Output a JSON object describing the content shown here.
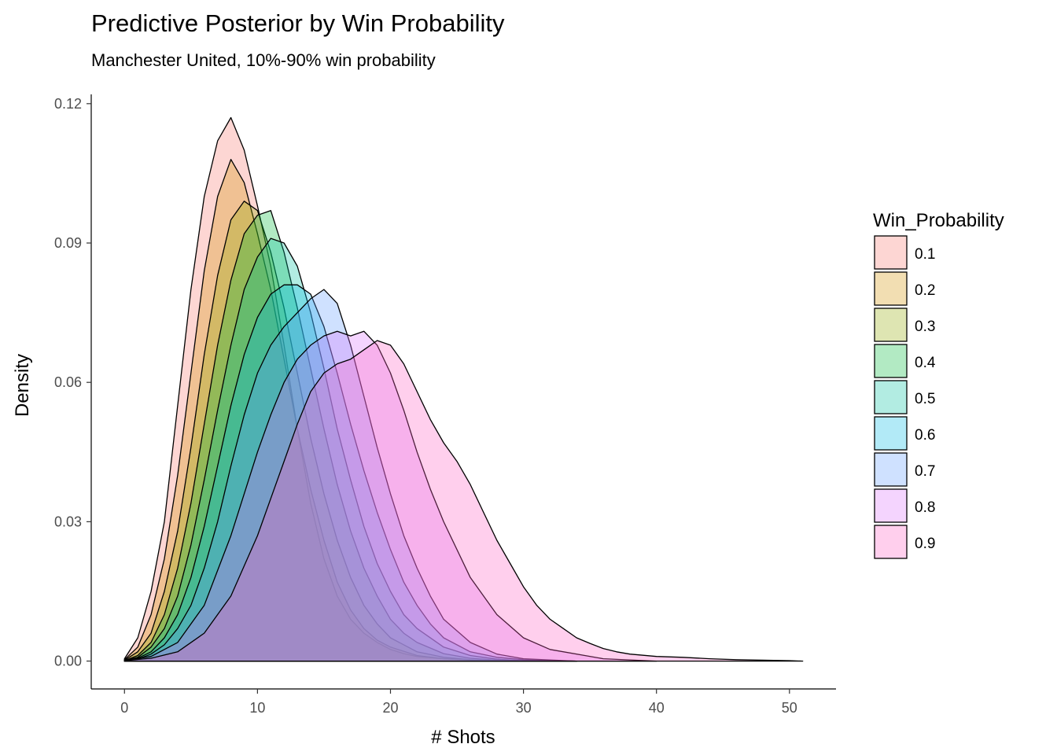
{
  "chart_data": {
    "type": "area",
    "title": "Predictive Posterior by Win Probability",
    "subtitle": "Manchester United, 10%-90% win probability",
    "xlabel": "# Shots",
    "ylabel": "Density",
    "xlim": [
      -2.5,
      53.5
    ],
    "ylim": [
      -0.006,
      0.122
    ],
    "x_ticks": [
      0,
      10,
      20,
      30,
      40,
      50
    ],
    "x_tick_labels": [
      "0",
      "10",
      "20",
      "30",
      "40",
      "50"
    ],
    "y_ticks": [
      0.0,
      0.03,
      0.06,
      0.09,
      0.12
    ],
    "y_tick_labels": [
      "0.00",
      "0.03",
      "0.06",
      "0.09",
      "0.12"
    ],
    "grid": false,
    "legend": {
      "title": "Win_Probability",
      "position": "right"
    },
    "series": [
      {
        "name": "0.1",
        "color": "#F8766D",
        "x": [
          0,
          1,
          2,
          3,
          4,
          5,
          6,
          7,
          8,
          9,
          10,
          11,
          12,
          13,
          14,
          15,
          16,
          17,
          18,
          19,
          20,
          21,
          22,
          24,
          26,
          28,
          30,
          34
        ],
        "y": [
          0.0005,
          0.005,
          0.015,
          0.03,
          0.055,
          0.08,
          0.1,
          0.112,
          0.117,
          0.11,
          0.098,
          0.085,
          0.068,
          0.05,
          0.034,
          0.022,
          0.014,
          0.009,
          0.006,
          0.004,
          0.0025,
          0.0016,
          0.001,
          0.0005,
          0.0002,
          0.0001,
          5e-05,
          0
        ]
      },
      {
        "name": "0.2",
        "color": "#D39200",
        "x": [
          0,
          1,
          2,
          3,
          4,
          5,
          6,
          7,
          8,
          9,
          10,
          11,
          12,
          13,
          14,
          15,
          16,
          17,
          18,
          19,
          20,
          22,
          24,
          26,
          28,
          30,
          34
        ],
        "y": [
          0.0003,
          0.003,
          0.01,
          0.022,
          0.04,
          0.062,
          0.084,
          0.1,
          0.108,
          0.103,
          0.092,
          0.08,
          0.065,
          0.05,
          0.037,
          0.026,
          0.017,
          0.011,
          0.007,
          0.0045,
          0.003,
          0.0012,
          0.0005,
          0.0002,
          0.0001,
          5e-05,
          0
        ]
      },
      {
        "name": "0.3",
        "color": "#93AA00",
        "x": [
          0,
          1,
          2,
          3,
          4,
          5,
          6,
          7,
          8,
          9,
          10,
          11,
          12,
          13,
          14,
          15,
          16,
          17,
          18,
          19,
          20,
          22,
          24,
          26,
          28,
          30,
          34
        ],
        "y": [
          0.0002,
          0.002,
          0.006,
          0.015,
          0.028,
          0.046,
          0.066,
          0.083,
          0.095,
          0.099,
          0.097,
          0.088,
          0.076,
          0.062,
          0.048,
          0.036,
          0.026,
          0.018,
          0.012,
          0.008,
          0.005,
          0.002,
          0.0008,
          0.0003,
          0.0001,
          5e-05,
          0
        ]
      },
      {
        "name": "0.4",
        "color": "#00BA38",
        "x": [
          0,
          1,
          2,
          3,
          4,
          5,
          6,
          7,
          8,
          9,
          10,
          11,
          12,
          13,
          14,
          15,
          16,
          17,
          18,
          19,
          20,
          21,
          22,
          24,
          26,
          28,
          30,
          34
        ],
        "y": [
          0.0001,
          0.0012,
          0.004,
          0.01,
          0.02,
          0.034,
          0.051,
          0.068,
          0.082,
          0.092,
          0.096,
          0.097,
          0.088,
          0.076,
          0.063,
          0.05,
          0.038,
          0.028,
          0.02,
          0.014,
          0.009,
          0.006,
          0.004,
          0.0016,
          0.0006,
          0.0002,
          0.0001,
          0
        ]
      },
      {
        "name": "0.5",
        "color": "#00C19F",
        "x": [
          0,
          1,
          2,
          3,
          4,
          5,
          6,
          7,
          8,
          9,
          10,
          11,
          12,
          13,
          14,
          15,
          16,
          17,
          18,
          19,
          20,
          21,
          22,
          24,
          26,
          28,
          30,
          34
        ],
        "y": [
          0.0001,
          0.0008,
          0.003,
          0.007,
          0.014,
          0.025,
          0.039,
          0.054,
          0.068,
          0.08,
          0.087,
          0.091,
          0.09,
          0.085,
          0.075,
          0.063,
          0.05,
          0.039,
          0.029,
          0.021,
          0.015,
          0.01,
          0.007,
          0.003,
          0.0012,
          0.0004,
          0.0001,
          0
        ]
      },
      {
        "name": "0.6",
        "color": "#00B9E3",
        "x": [
          0,
          1,
          2,
          3,
          4,
          5,
          6,
          7,
          8,
          9,
          10,
          11,
          12,
          13,
          14,
          15,
          16,
          17,
          18,
          19,
          20,
          21,
          22,
          23,
          24,
          26,
          28,
          30,
          34
        ],
        "y": [
          0.0001,
          0.0006,
          0.002,
          0.005,
          0.01,
          0.018,
          0.029,
          0.042,
          0.055,
          0.066,
          0.074,
          0.079,
          0.081,
          0.081,
          0.079,
          0.072,
          0.062,
          0.051,
          0.041,
          0.032,
          0.024,
          0.017,
          0.012,
          0.008,
          0.005,
          0.002,
          0.0008,
          0.0003,
          0
        ]
      },
      {
        "name": "0.7",
        "color": "#619CFF",
        "x": [
          0,
          1,
          2,
          3,
          4,
          5,
          6,
          7,
          8,
          9,
          10,
          11,
          12,
          13,
          14,
          15,
          16,
          17,
          18,
          19,
          20,
          21,
          22,
          23,
          24,
          26,
          28,
          30,
          34
        ],
        "y": [
          0.0001,
          0.0004,
          0.0015,
          0.0035,
          0.007,
          0.012,
          0.02,
          0.03,
          0.042,
          0.053,
          0.062,
          0.068,
          0.072,
          0.075,
          0.078,
          0.08,
          0.077,
          0.068,
          0.057,
          0.046,
          0.036,
          0.027,
          0.02,
          0.014,
          0.009,
          0.004,
          0.0015,
          0.0005,
          0
        ]
      },
      {
        "name": "0.8",
        "color": "#DB72FB",
        "x": [
          0,
          2,
          4,
          6,
          8,
          9,
          10,
          11,
          12,
          13,
          14,
          15,
          16,
          17,
          18,
          19,
          20,
          21,
          22,
          23,
          24,
          26,
          28,
          30,
          32,
          36,
          40
        ],
        "y": [
          0.0001,
          0.001,
          0.004,
          0.012,
          0.027,
          0.036,
          0.045,
          0.053,
          0.06,
          0.065,
          0.068,
          0.07,
          0.071,
          0.07,
          0.071,
          0.068,
          0.062,
          0.054,
          0.045,
          0.037,
          0.03,
          0.018,
          0.01,
          0.005,
          0.0025,
          0.0005,
          0
        ]
      },
      {
        "name": "0.9",
        "color": "#FF61C3",
        "x": [
          0,
          2,
          4,
          6,
          8,
          10,
          11,
          12,
          13,
          14,
          15,
          16,
          17,
          18,
          19,
          20,
          21,
          22,
          23,
          24,
          25,
          26,
          27,
          28,
          29,
          30,
          31,
          32,
          33,
          34,
          35,
          36,
          37,
          38,
          40,
          42,
          44,
          46,
          48,
          50,
          51
        ],
        "y": [
          0.0001,
          0.0006,
          0.002,
          0.006,
          0.014,
          0.027,
          0.035,
          0.043,
          0.051,
          0.058,
          0.062,
          0.064,
          0.065,
          0.067,
          0.069,
          0.068,
          0.064,
          0.058,
          0.052,
          0.047,
          0.043,
          0.038,
          0.032,
          0.026,
          0.021,
          0.016,
          0.012,
          0.009,
          0.007,
          0.005,
          0.0038,
          0.0027,
          0.002,
          0.0015,
          0.001,
          0.0008,
          0.0005,
          0.0003,
          0.0002,
          0.0001,
          0
        ]
      }
    ]
  }
}
